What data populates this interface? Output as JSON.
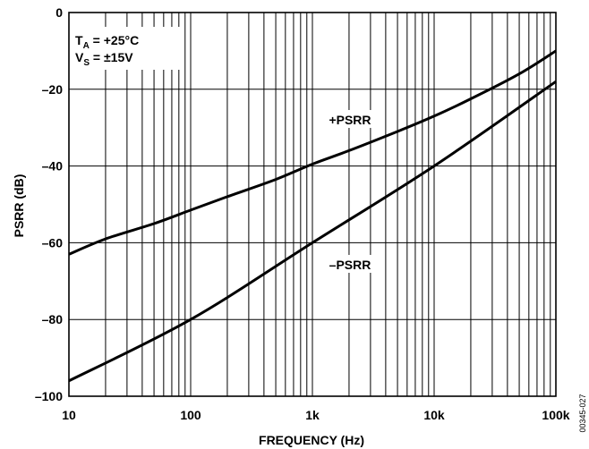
{
  "chart_data": {
    "type": "line",
    "xlabel": "FREQUENCY (Hz)",
    "ylabel": "PSRR (dB)",
    "xscale": "log",
    "xlim": [
      10,
      100000
    ],
    "ylim": [
      -100,
      0
    ],
    "grid": true,
    "x_ticks": [
      10,
      100,
      1000,
      10000,
      100000
    ],
    "x_tick_labels": [
      "10",
      "100",
      "1k",
      "10k",
      "100k"
    ],
    "y_ticks": [
      0,
      -20,
      -40,
      -60,
      -80,
      -100
    ],
    "y_tick_labels": [
      "0",
      "–20",
      "–40",
      "–60",
      "–80",
      "–100"
    ],
    "conditions": [
      {
        "label": "T",
        "sub": "A",
        "rest": " = +25°C"
      },
      {
        "label": "V",
        "sub": "S",
        "rest": " = ±15V"
      }
    ],
    "series": [
      {
        "name": "+PSRR",
        "x": [
          10,
          20,
          50,
          100,
          200,
          500,
          1000,
          2000,
          5000,
          10000,
          20000,
          50000,
          100000
        ],
        "y": [
          -63,
          -59,
          -55,
          -51.5,
          -48,
          -43.5,
          -39.5,
          -36,
          -31,
          -27,
          -22.5,
          -16,
          -10
        ]
      },
      {
        "name": "–PSRR",
        "x": [
          10,
          100,
          1000,
          10000,
          100000
        ],
        "y": [
          -96,
          -80,
          -60,
          -40,
          -18
        ]
      }
    ],
    "figure_id": "00345-027"
  }
}
